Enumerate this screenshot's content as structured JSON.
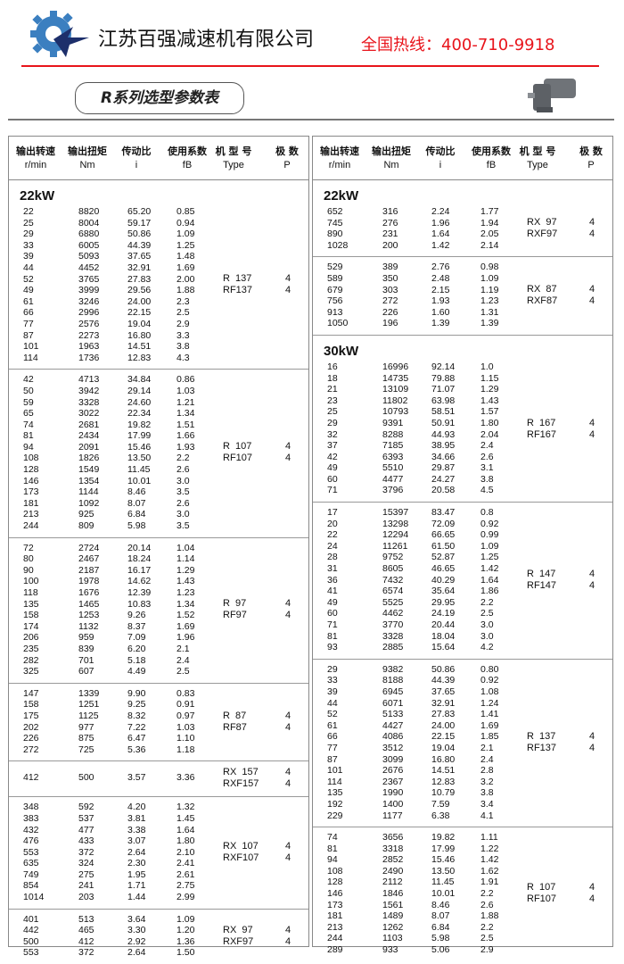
{
  "header": {
    "company": "江苏百强减速机有限公司",
    "hotline": "全国热线：400-710-9918",
    "title": "R系列选型参数表",
    "colors": {
      "brand_blue": "#3b7fc0",
      "star_navy": "#1d2f6b",
      "hotline_red": "#e8141b"
    }
  },
  "columns": [
    {
      "zh": "输出转速",
      "en": "r/min"
    },
    {
      "zh": "输出扭矩",
      "en": "Nm"
    },
    {
      "zh": "传动比",
      "en": "i"
    },
    {
      "zh": "使用系数",
      "en": "fB"
    },
    {
      "zh": "机 型 号",
      "en": "Type"
    },
    {
      "zh": "极  数",
      "en": "P"
    }
  ],
  "left": [
    {
      "kw": "22kW",
      "types": [
        "R  137",
        "RF137"
      ],
      "poles": [
        "4",
        "4"
      ],
      "rows": [
        [
          "22",
          "8820",
          "65.20",
          "0.85"
        ],
        [
          "25",
          "8004",
          "59.17",
          "0.94"
        ],
        [
          "29",
          "6880",
          "50.86",
          "1.09"
        ],
        [
          "33",
          "6005",
          "44.39",
          "1.25"
        ],
        [
          "39",
          "5093",
          "37.65",
          "1.48"
        ],
        [
          "44",
          "4452",
          "32.91",
          "1.69"
        ],
        [
          "52",
          "3765",
          "27.83",
          "2.00"
        ],
        [
          "49",
          "3999",
          "29.56",
          "1.88"
        ],
        [
          "61",
          "3246",
          "24.00",
          "2.3"
        ],
        [
          "66",
          "2996",
          "22.15",
          "2.5"
        ],
        [
          "77",
          "2576",
          "19.04",
          "2.9"
        ],
        [
          "87",
          "2273",
          "16.80",
          "3.3"
        ],
        [
          "101",
          "1963",
          "14.51",
          "3.8"
        ],
        [
          "114",
          "1736",
          "12.83",
          "4.3"
        ]
      ]
    },
    {
      "kw": "",
      "types": [
        "R  107",
        "RF107"
      ],
      "poles": [
        "4",
        "4"
      ],
      "rows": [
        [
          "42",
          "4713",
          "34.84",
          "0.86"
        ],
        [
          "50",
          "3942",
          "29.14",
          "1.03"
        ],
        [
          "59",
          "3328",
          "24.60",
          "1.21"
        ],
        [
          "65",
          "3022",
          "22.34",
          "1.34"
        ],
        [
          "74",
          "2681",
          "19.82",
          "1.51"
        ],
        [
          "81",
          "2434",
          "17.99",
          "1.66"
        ],
        [
          "94",
          "2091",
          "15.46",
          "1.93"
        ],
        [
          "108",
          "1826",
          "13.50",
          "2.2"
        ],
        [
          "128",
          "1549",
          "11.45",
          "2.6"
        ],
        [
          "146",
          "1354",
          "10.01",
          "3.0"
        ],
        [
          "173",
          "1144",
          "8.46",
          "3.5"
        ],
        [
          "181",
          "1092",
          "8.07",
          "2.6"
        ],
        [
          "213",
          "925",
          "6.84",
          "3.0"
        ],
        [
          "244",
          "809",
          "5.98",
          "3.5"
        ]
      ]
    },
    {
      "kw": "",
      "types": [
        "R  97",
        "RF97"
      ],
      "poles": [
        "4",
        "4"
      ],
      "rows": [
        [
          "72",
          "2724",
          "20.14",
          "1.04"
        ],
        [
          "80",
          "2467",
          "18.24",
          "1.14"
        ],
        [
          "90",
          "2187",
          "16.17",
          "1.29"
        ],
        [
          "100",
          "1978",
          "14.62",
          "1.43"
        ],
        [
          "118",
          "1676",
          "12.39",
          "1.23"
        ],
        [
          "135",
          "1465",
          "10.83",
          "1.34"
        ],
        [
          "158",
          "1253",
          "9.26",
          "1.52"
        ],
        [
          "174",
          "1132",
          "8.37",
          "1.69"
        ],
        [
          "206",
          "959",
          "7.09",
          "1.96"
        ],
        [
          "235",
          "839",
          "6.20",
          "2.1"
        ],
        [
          "282",
          "701",
          "5.18",
          "2.4"
        ],
        [
          "325",
          "607",
          "4.49",
          "2.5"
        ]
      ]
    },
    {
      "kw": "",
      "types": [
        "R  87",
        "RF87"
      ],
      "poles": [
        "4",
        "4"
      ],
      "rows": [
        [
          "147",
          "1339",
          "9.90",
          "0.83"
        ],
        [
          "158",
          "1251",
          "9.25",
          "0.91"
        ],
        [
          "175",
          "1125",
          "8.32",
          "0.97"
        ],
        [
          "202",
          "977",
          "7.22",
          "1.03"
        ],
        [
          "226",
          "875",
          "6.47",
          "1.10"
        ],
        [
          "272",
          "725",
          "5.36",
          "1.18"
        ]
      ]
    },
    {
      "kw": "",
      "types": [
        "RX  157",
        "RXF157"
      ],
      "poles": [
        "4",
        "4"
      ],
      "rows": [
        [
          "412",
          "500",
          "3.57",
          "3.36"
        ]
      ]
    },
    {
      "kw": "",
      "types": [
        "RX  107",
        "RXF107"
      ],
      "poles": [
        "4",
        "4"
      ],
      "rows": [
        [
          "348",
          "592",
          "4.20",
          "1.32"
        ],
        [
          "383",
          "537",
          "3.81",
          "1.45"
        ],
        [
          "432",
          "477",
          "3.38",
          "1.64"
        ],
        [
          "476",
          "433",
          "3.07",
          "1.80"
        ],
        [
          "553",
          "372",
          "2.64",
          "2.10"
        ],
        [
          "635",
          "324",
          "2.30",
          "2.41"
        ],
        [
          "749",
          "275",
          "1.95",
          "2.61"
        ],
        [
          "854",
          "241",
          "1.71",
          "2.75"
        ],
        [
          "1014",
          "203",
          "1.44",
          "2.99"
        ]
      ]
    },
    {
      "kw": "",
      "types": [
        "RX  97",
        "RXF97"
      ],
      "poles": [
        "4",
        "4"
      ],
      "rows": [
        [
          "401",
          "513",
          "3.64",
          "1.09"
        ],
        [
          "442",
          "465",
          "3.30",
          "1.20"
        ],
        [
          "500",
          "412",
          "2.92",
          "1.36"
        ],
        [
          "553",
          "372",
          "2.64",
          "1.50"
        ]
      ]
    }
  ],
  "right": [
    {
      "kw": "22kW",
      "types": [
        "RX  97",
        "RXF97"
      ],
      "poles": [
        "4",
        "4"
      ],
      "rows": [
        [
          "652",
          "316",
          "2.24",
          "1.77"
        ],
        [
          "745",
          "276",
          "1.96",
          "1.94"
        ],
        [
          "890",
          "231",
          "1.64",
          "2.05"
        ],
        [
          "1028",
          "200",
          "1.42",
          "2.14"
        ]
      ]
    },
    {
      "kw": "",
      "types": [
        "RX  87",
        "RXF87"
      ],
      "poles": [
        "4",
        "4"
      ],
      "rows": [
        [
          "529",
          "389",
          "2.76",
          "0.98"
        ],
        [
          "589",
          "350",
          "2.48",
          "1.09"
        ],
        [
          "679",
          "303",
          "2.15",
          "1.19"
        ],
        [
          "756",
          "272",
          "1.93",
          "1.23"
        ],
        [
          "913",
          "226",
          "1.60",
          "1.31"
        ],
        [
          "1050",
          "196",
          "1.39",
          "1.39"
        ]
      ]
    },
    {
      "kw": "30kW",
      "types": [
        "R  167",
        "RF167"
      ],
      "poles": [
        "4",
        "4"
      ],
      "rows": [
        [
          "16",
          "16996",
          "92.14",
          "1.0"
        ],
        [
          "18",
          "14735",
          "79.88",
          "1.15"
        ],
        [
          "21",
          "13109",
          "71.07",
          "1.29"
        ],
        [
          "23",
          "11802",
          "63.98",
          "1.43"
        ],
        [
          "25",
          "10793",
          "58.51",
          "1.57"
        ],
        [
          "29",
          "9391",
          "50.91",
          "1.80"
        ],
        [
          "32",
          "8288",
          "44.93",
          "2.04"
        ],
        [
          "37",
          "7185",
          "38.95",
          "2.4"
        ],
        [
          "42",
          "6393",
          "34.66",
          "2.6"
        ],
        [
          "49",
          "5510",
          "29.87",
          "3.1"
        ],
        [
          "60",
          "4477",
          "24.27",
          "3.8"
        ],
        [
          "71",
          "3796",
          "20.58",
          "4.5"
        ]
      ]
    },
    {
      "kw": "",
      "types": [
        "R  147",
        "RF147"
      ],
      "poles": [
        "4",
        "4"
      ],
      "rows": [
        [
          "17",
          "15397",
          "83.47",
          "0.8"
        ],
        [
          "20",
          "13298",
          "72.09",
          "0.92"
        ],
        [
          "22",
          "12294",
          "66.65",
          "0.99"
        ],
        [
          "24",
          "11261",
          "61.50",
          "1.09"
        ],
        [
          "28",
          "9752",
          "52.87",
          "1.25"
        ],
        [
          "31",
          "8605",
          "46.65",
          "1.42"
        ],
        [
          "36",
          "7432",
          "40.29",
          "1.64"
        ],
        [
          "41",
          "6574",
          "35.64",
          "1.86"
        ],
        [
          "49",
          "5525",
          "29.95",
          "2.2"
        ],
        [
          "60",
          "4462",
          "24.19",
          "2.5"
        ],
        [
          "71",
          "3770",
          "20.44",
          "3.0"
        ],
        [
          "81",
          "3328",
          "18.04",
          "3.0"
        ],
        [
          "93",
          "2885",
          "15.64",
          "4.2"
        ]
      ]
    },
    {
      "kw": "",
      "types": [
        "R  137",
        "RF137"
      ],
      "poles": [
        "4",
        "4"
      ],
      "rows": [
        [
          "29",
          "9382",
          "50.86",
          "0.80"
        ],
        [
          "33",
          "8188",
          "44.39",
          "0.92"
        ],
        [
          "39",
          "6945",
          "37.65",
          "1.08"
        ],
        [
          "44",
          "6071",
          "32.91",
          "1.24"
        ],
        [
          "52",
          "5133",
          "27.83",
          "1.41"
        ],
        [
          "61",
          "4427",
          "24.00",
          "1.69"
        ],
        [
          "66",
          "4086",
          "22.15",
          "1.85"
        ],
        [
          "77",
          "3512",
          "19.04",
          "2.1"
        ],
        [
          "87",
          "3099",
          "16.80",
          "2.4"
        ],
        [
          "101",
          "2676",
          "14.51",
          "2.8"
        ],
        [
          "114",
          "2367",
          "12.83",
          "3.2"
        ],
        [
          "135",
          "1990",
          "10.79",
          "3.8"
        ],
        [
          "192",
          "1400",
          "7.59",
          "3.4"
        ],
        [
          "229",
          "1177",
          "6.38",
          "4.1"
        ]
      ]
    },
    {
      "kw": "",
      "types": [
        "R  107",
        "RF107"
      ],
      "poles": [
        "4",
        "4"
      ],
      "rows": [
        [
          "74",
          "3656",
          "19.82",
          "1.11"
        ],
        [
          "81",
          "3318",
          "17.99",
          "1.22"
        ],
        [
          "94",
          "2852",
          "15.46",
          "1.42"
        ],
        [
          "108",
          "2490",
          "13.50",
          "1.62"
        ],
        [
          "128",
          "2112",
          "11.45",
          "1.91"
        ],
        [
          "146",
          "1846",
          "10.01",
          "2.2"
        ],
        [
          "173",
          "1561",
          "8.46",
          "2.6"
        ],
        [
          "181",
          "1489",
          "8.07",
          "1.88"
        ],
        [
          "213",
          "1262",
          "6.84",
          "2.2"
        ],
        [
          "244",
          "1103",
          "5.98",
          "2.5"
        ],
        [
          "289",
          "933",
          "5.06",
          "2.9"
        ]
      ]
    }
  ]
}
